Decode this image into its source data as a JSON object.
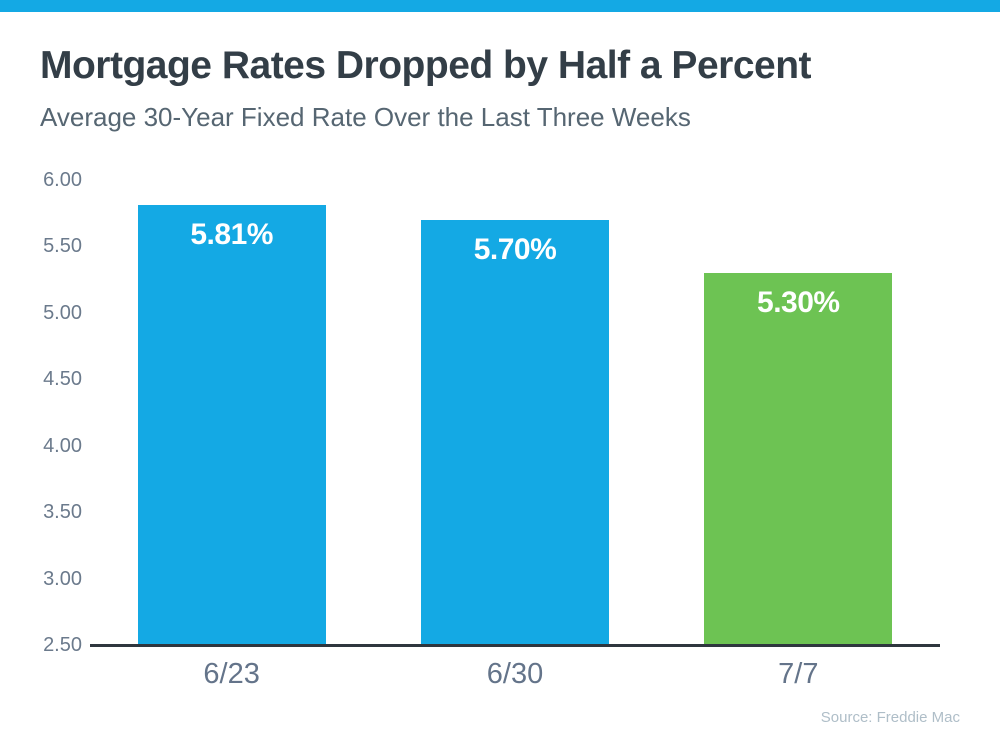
{
  "page": {
    "background_color": "#FFFFFF",
    "accent_bar_color": "#14A9E4"
  },
  "header": {
    "title": "Mortgage Rates Dropped by Half a Percent",
    "subtitle": "Average 30-Year Fixed Rate Over the Last Three Weeks"
  },
  "chart_data": {
    "type": "bar",
    "title": "Mortgage Rates Dropped by Half a Percent",
    "subtitle": "Average 30-Year Fixed Rate Over the Last Three Weeks",
    "categories": [
      "6/23",
      "6/30",
      "7/7"
    ],
    "values": [
      5.81,
      5.7,
      5.3
    ],
    "value_labels": [
      "5.81%",
      "5.70%",
      "5.30%"
    ],
    "bar_colors": [
      "#14A9E4",
      "#14A9E4",
      "#6DC353"
    ],
    "value_label_color": "#FFFFFF",
    "xlabel": "",
    "ylabel": "",
    "ylim": [
      2.5,
      6.0
    ],
    "ytick_labels": [
      "6.00",
      "5.50",
      "5.00",
      "4.50",
      "4.00",
      "3.50",
      "3.00",
      "2.50"
    ],
    "ytick_values": [
      6.0,
      5.5,
      5.0,
      4.5,
      4.0,
      3.5,
      3.0,
      2.5
    ],
    "grid": false,
    "legend": false,
    "axis_line_color": "#2E363E",
    "tick_label_color": "#6B7A8C",
    "category_label_color": "#64748A"
  },
  "footer": {
    "source": "Source: Freddie Mac"
  }
}
